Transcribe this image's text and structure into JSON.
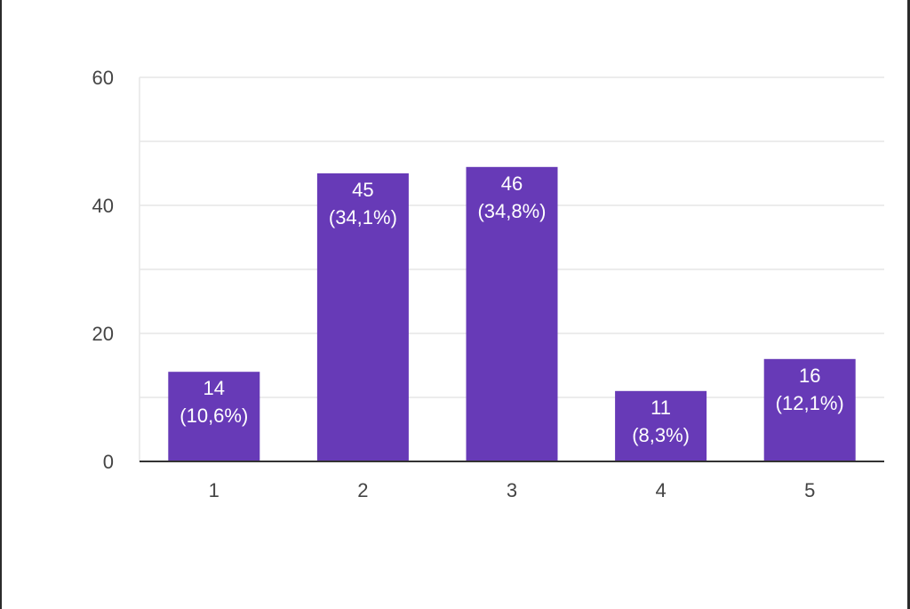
{
  "chart_data": {
    "type": "bar",
    "title": "",
    "xlabel": "",
    "ylabel": "",
    "categories": [
      "1",
      "2",
      "3",
      "4",
      "5"
    ],
    "values": [
      14,
      45,
      46,
      11,
      16
    ],
    "labels": [
      "(10,6%)",
      "(34,1%)",
      "(34,8%)",
      "(8,3%)",
      "(12,1%)"
    ],
    "ylim": [
      0,
      60
    ],
    "yticks": [
      "0",
      "20",
      "40",
      "60"
    ],
    "ytick_values": [
      0,
      20,
      40,
      60
    ],
    "grid": true,
    "bar_color": "#673ab7",
    "grid_color": "#e6e6e6",
    "axis_color": "#333333"
  }
}
